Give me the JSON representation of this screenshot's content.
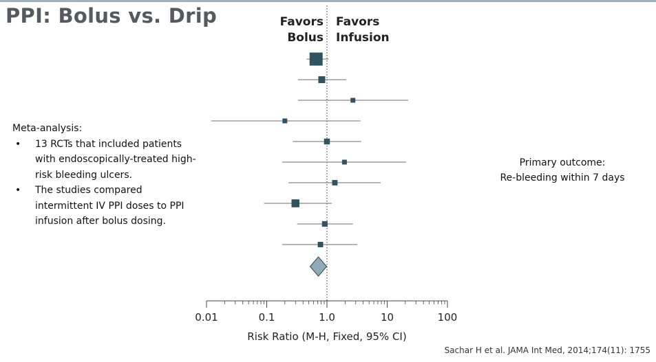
{
  "slide": {
    "title": "PPI: Bolus vs. Drip",
    "favors_left": [
      "Favors",
      "Bolus"
    ],
    "favors_right": [
      "Favors",
      "Infusion"
    ],
    "notes_heading": "Meta-analysis:",
    "bullets": [
      "13 RCTs that included patients with endoscopically-treated high-risk bleeding ulcers.",
      "The studies compared intermittent IV PPI doses to PPI infusion after bolus dosing."
    ],
    "outcome": [
      "Primary outcome:",
      "Re-bleeding within 7 days"
    ],
    "citation": "Sachar H et al. JAMA Int Med, 2014;174(11): 1755"
  },
  "colors": {
    "marker": "#2f5361",
    "diamond_fill": "#8fabb6",
    "diamond_stroke": "#3b5560",
    "ci_line": "#8a8a8a",
    "axis": "#444444",
    "title": "#555a5e"
  },
  "chart_data": {
    "type": "forest",
    "xlabel": "Risk Ratio (M-H, Fixed, 95% CI)",
    "xscale": "log",
    "xlim": [
      0.01,
      100
    ],
    "xticks": [
      "0.01",
      "0.1",
      "1.0",
      "10",
      "100"
    ],
    "reference_line": 1,
    "studies": [
      {
        "rr": 0.66,
        "lower": 0.46,
        "upper": 1.06,
        "weight": 5
      },
      {
        "rr": 0.82,
        "lower": 0.33,
        "upper": 2.1,
        "weight": 2
      },
      {
        "rr": 2.7,
        "lower": 0.33,
        "upper": 22.4,
        "weight": 1
      },
      {
        "rr": 0.2,
        "lower": 0.012,
        "upper": 3.6,
        "weight": 1
      },
      {
        "rr": 1.0,
        "lower": 0.27,
        "upper": 3.7,
        "weight": 1.5
      },
      {
        "rr": 1.95,
        "lower": 0.18,
        "upper": 20.6,
        "weight": 1
      },
      {
        "rr": 1.35,
        "lower": 0.23,
        "upper": 7.8,
        "weight": 1.3
      },
      {
        "rr": 0.3,
        "lower": 0.09,
        "upper": 1.2,
        "weight": 2.5
      },
      {
        "rr": 0.92,
        "lower": 0.32,
        "upper": 2.7,
        "weight": 1.4
      },
      {
        "rr": 0.78,
        "lower": 0.18,
        "upper": 3.2,
        "weight": 1.3
      }
    ],
    "pooled": {
      "rr": 0.72,
      "lower": 0.58,
      "upper": 0.9
    }
  }
}
